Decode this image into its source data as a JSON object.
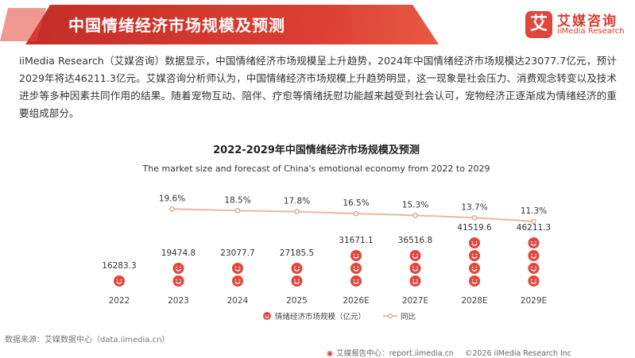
{
  "header": {
    "title": "中国情绪经济市场规模及预测",
    "logo_cn": "艾媒咨询",
    "logo_en": "iiMedia Research",
    "logo_mark": "艾"
  },
  "intro": "iiMedia Research（艾媒咨询）数据显示，中国情绪经济市场规模呈上升趋势，2024年中国情绪经济市场规模达23077.7亿元，预计2029年将达46211.3亿元。艾媒咨询分析师认为，中国情绪经济市场规模上升趋势明显，这一现象是社会压力、消费观念转变以及技术进步等多种因素共同作用的结果。随着宠物互动、陪伴、疗愈等情绪抚慰功能越来越受到社会认可，宠物经济正逐渐成为情绪经济的重要组成部分。",
  "chart_data": {
    "type": "bar",
    "title": "2022-2029年中国情绪经济市场规模及预测",
    "subtitle": "The market size and forecast of China's emotional economy from 2022 to 2029",
    "categories": [
      "2022",
      "2023",
      "2024",
      "2025",
      "2026E",
      "2027E",
      "2028E",
      "2029E"
    ],
    "series": [
      {
        "name": "情绪经济市场规模（亿元）",
        "type": "bar",
        "values": [
          16283.3,
          19474.8,
          23077.7,
          27185.5,
          31671.1,
          36516.8,
          41519.6,
          46211.3
        ],
        "labels": [
          "16283.3",
          "19474.8",
          "23077.7",
          "27185.5",
          "31671.1",
          "36516.8",
          "41519.6",
          "46211.3"
        ],
        "color": "#e0473c"
      },
      {
        "name": "同比",
        "type": "line",
        "values": [
          19.6,
          18.5,
          17.8,
          16.5,
          15.3,
          13.7,
          11.3
        ],
        "labels": [
          "19.6%",
          "18.5%",
          "17.8%",
          "16.5%",
          "15.3%",
          "13.7%",
          "11.3%"
        ],
        "x": [
          "2023",
          "2024",
          "2025",
          "2026E",
          "2027E",
          "2028E",
          "2029E"
        ],
        "color": "#e7bfa9"
      }
    ],
    "legend_position": "bottom",
    "grid": false
  },
  "source": "数据来源：艾媒数据中心（data.iimedia.cn）",
  "footer": {
    "brand": "艾媒报告中心：report.iimedia.cn",
    "copyright": "©2026  iiMedia Research  Inc"
  },
  "colors": {
    "brand_red": "#d83b30",
    "bar_icon": "#e0473c",
    "line": "#e7bfa9",
    "line_marker": "#c9a48b",
    "header_dark": "#c0302a"
  }
}
